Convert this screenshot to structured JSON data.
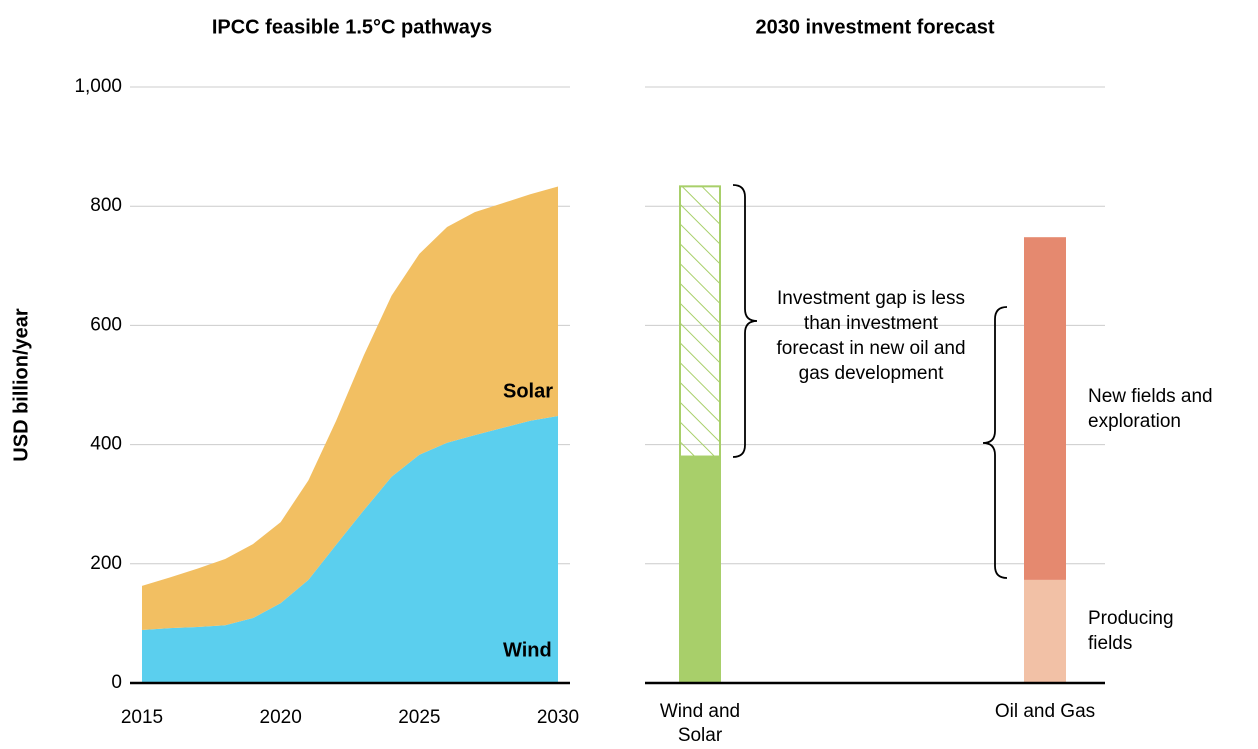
{
  "chart_data": [
    {
      "type": "area",
      "title": "IPCC feasible 1.5°C pathways",
      "ylabel": "USD billion/year",
      "x": [
        2015,
        2016,
        2017,
        2018,
        2019,
        2020,
        2021,
        2022,
        2023,
        2024,
        2025,
        2026,
        2027,
        2028,
        2029,
        2030
      ],
      "series": [
        {
          "name": "Wind",
          "color": "#5bcfee",
          "values": [
            89,
            92,
            94,
            97,
            109,
            134,
            173,
            232,
            290,
            346,
            383,
            403,
            416,
            428,
            440,
            448
          ]
        },
        {
          "name": "Solar",
          "color": "#f2bf62",
          "values": [
            74,
            85,
            98,
            111,
            124,
            136,
            167,
            208,
            260,
            304,
            337,
            362,
            374,
            377,
            380,
            385
          ]
        }
      ],
      "xlim": [
        2015,
        2030
      ],
      "xticks": [
        2015,
        2020,
        2025,
        2030
      ],
      "ylim": [
        0,
        1000
      ],
      "yticks": [
        0,
        200,
        400,
        600,
        800,
        {
          "value": 1000,
          "label": "1,000"
        }
      ],
      "grid": true,
      "stacked": true
    },
    {
      "type": "bar",
      "title": "2030 investment forecast",
      "categories": [
        "Wind and Solar",
        "Oil and Gas"
      ],
      "series": [
        {
          "color": "#a8cf6a",
          "values": [
            380,
            null
          ]
        },
        {
          "color": "#a8cf6a",
          "pattern": "hatch",
          "values": [
            455,
            null
          ]
        },
        {
          "name": "Producing fields",
          "color": "#f2c1a6",
          "values": [
            null,
            173
          ]
        },
        {
          "name": "New fields and exploration",
          "color": "#e5896f",
          "values": [
            null,
            575
          ]
        }
      ],
      "ylim": [
        0,
        1000
      ],
      "yticks": [
        0,
        200,
        400,
        600,
        800,
        1000
      ],
      "grid": true,
      "stacked": true,
      "annotation": "Investment gap is less than investment forecast in new oil and gas development"
    }
  ]
}
